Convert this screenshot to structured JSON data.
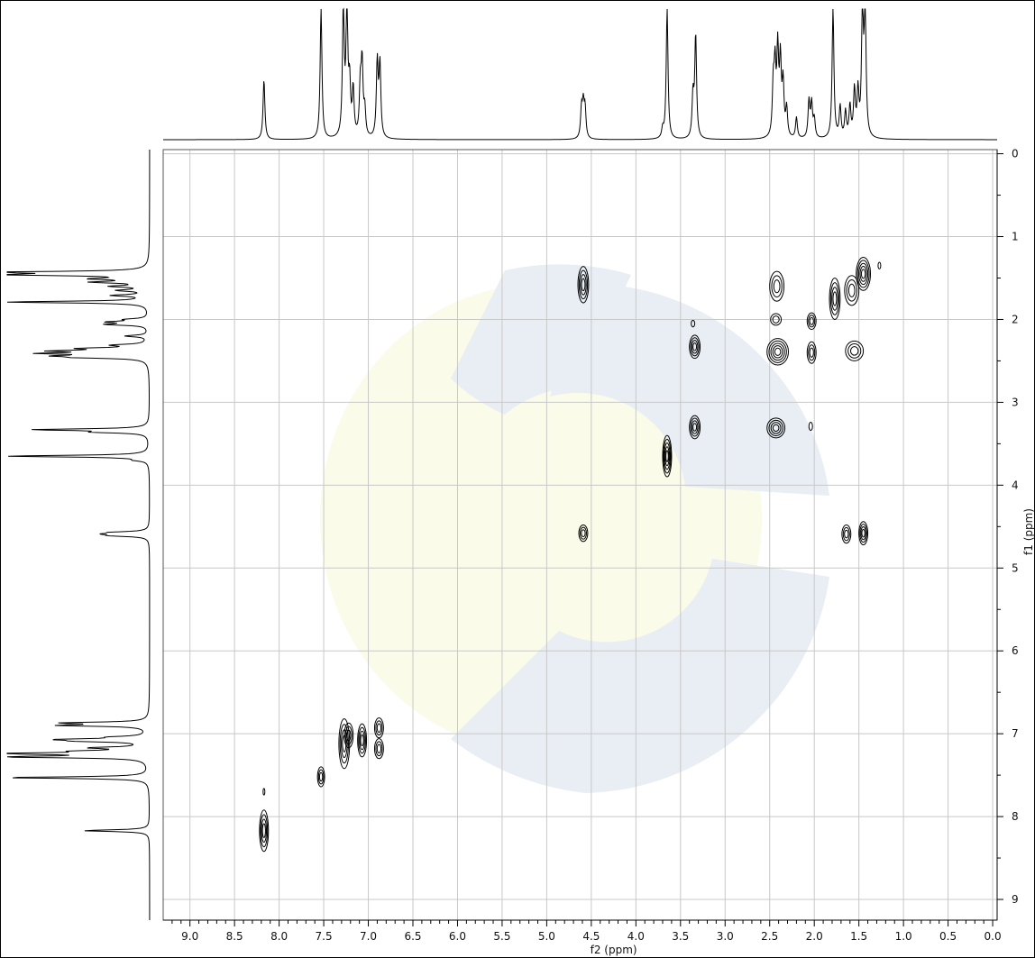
{
  "chart_data": {
    "type": "contour",
    "x_axis": {
      "label": "f2 (ppm)",
      "range": [
        9.3,
        -0.05
      ],
      "ticks": [
        "9.0",
        "8.5",
        "8.0",
        "7.5",
        "7.0",
        "6.5",
        "6.0",
        "5.5",
        "5.0",
        "4.5",
        "4.0",
        "3.5",
        "3.0",
        "2.5",
        "2.0",
        "1.5",
        "1.0",
        "0.5",
        "0.0"
      ]
    },
    "y_axis": {
      "label": "f1 (ppm)",
      "range": [
        -0.05,
        9.25
      ],
      "ticks": [
        "0",
        "1",
        "2",
        "3",
        "4",
        "5",
        "6",
        "7",
        "8",
        "9"
      ]
    },
    "grid": true,
    "projection_peaks": [
      {
        "shift": 8.17,
        "height": 0.46
      },
      {
        "shift": 7.53,
        "height": 1.0
      },
      {
        "shift": 7.28,
        "height": 1.0
      },
      {
        "shift": 7.24,
        "height": 1.0
      },
      {
        "shift": 7.21,
        "height": 0.38
      },
      {
        "shift": 7.17,
        "height": 0.36
      },
      {
        "shift": 7.09,
        "height": 0.38
      },
      {
        "shift": 7.07,
        "height": 0.55
      },
      {
        "shift": 7.04,
        "height": 0.2
      },
      {
        "shift": 6.9,
        "height": 0.58
      },
      {
        "shift": 6.87,
        "height": 0.56
      },
      {
        "shift": 4.61,
        "height": 0.22
      },
      {
        "shift": 4.59,
        "height": 0.24
      },
      {
        "shift": 4.57,
        "height": 0.22
      },
      {
        "shift": 3.7,
        "height": 0.07
      },
      {
        "shift": 3.65,
        "height": 1.0
      },
      {
        "shift": 3.36,
        "height": 0.32
      },
      {
        "shift": 3.33,
        "height": 0.79
      },
      {
        "shift": 2.46,
        "height": 0.38
      },
      {
        "shift": 2.44,
        "height": 0.5
      },
      {
        "shift": 2.41,
        "height": 0.64
      },
      {
        "shift": 2.38,
        "height": 0.56
      },
      {
        "shift": 2.35,
        "height": 0.4
      },
      {
        "shift": 2.31,
        "height": 0.22
      },
      {
        "shift": 2.2,
        "height": 0.16
      },
      {
        "shift": 2.06,
        "height": 0.28
      },
      {
        "shift": 2.03,
        "height": 0.26
      },
      {
        "shift": 2.0,
        "height": 0.14
      },
      {
        "shift": 1.79,
        "height": 1.0
      },
      {
        "shift": 1.71,
        "height": 0.24
      },
      {
        "shift": 1.65,
        "height": 0.2
      },
      {
        "shift": 1.6,
        "height": 0.24
      },
      {
        "shift": 1.55,
        "height": 0.36
      },
      {
        "shift": 1.51,
        "height": 0.34
      },
      {
        "shift": 1.46,
        "height": 1.0
      },
      {
        "shift": 1.43,
        "height": 1.0
      }
    ],
    "cross_peaks": [
      {
        "f2": 8.17,
        "f1": 8.17,
        "w": 0.05,
        "h": 0.25,
        "levels": 4
      },
      {
        "f2": 7.53,
        "f1": 7.52,
        "w": 0.04,
        "h": 0.12,
        "levels": 3
      },
      {
        "f2": 7.27,
        "f1": 7.12,
        "w": 0.06,
        "h": 0.3,
        "levels": 4
      },
      {
        "f2": 7.22,
        "f1": 7.02,
        "w": 0.05,
        "h": 0.15,
        "levels": 3
      },
      {
        "f2": 7.07,
        "f1": 7.08,
        "w": 0.05,
        "h": 0.2,
        "levels": 4
      },
      {
        "f2": 6.88,
        "f1": 6.93,
        "w": 0.05,
        "h": 0.12,
        "levels": 3
      },
      {
        "f2": 6.88,
        "f1": 7.18,
        "w": 0.05,
        "h": 0.12,
        "levels": 3
      },
      {
        "f2": 4.59,
        "f1": 1.58,
        "w": 0.06,
        "h": 0.22,
        "levels": 4
      },
      {
        "f2": 4.59,
        "f1": 4.58,
        "w": 0.05,
        "h": 0.1,
        "levels": 3
      },
      {
        "f2": 3.65,
        "f1": 3.65,
        "w": 0.05,
        "h": 0.25,
        "levels": 5
      },
      {
        "f2": 3.34,
        "f1": 2.33,
        "w": 0.06,
        "h": 0.14,
        "levels": 4
      },
      {
        "f2": 3.34,
        "f1": 3.3,
        "w": 0.06,
        "h": 0.14,
        "levels": 4
      },
      {
        "f2": 2.42,
        "f1": 1.6,
        "w": 0.08,
        "h": 0.18,
        "levels": 3
      },
      {
        "f2": 2.43,
        "f1": 2.0,
        "w": 0.06,
        "h": 0.07,
        "levels": 2
      },
      {
        "f2": 2.41,
        "f1": 2.39,
        "w": 0.12,
        "h": 0.16,
        "levels": 5
      },
      {
        "f2": 2.43,
        "f1": 3.31,
        "w": 0.1,
        "h": 0.12,
        "levels": 4
      },
      {
        "f2": 2.03,
        "f1": 2.02,
        "w": 0.05,
        "h": 0.1,
        "levels": 3
      },
      {
        "f2": 2.03,
        "f1": 2.4,
        "w": 0.05,
        "h": 0.13,
        "levels": 3
      },
      {
        "f2": 2.04,
        "f1": 3.29,
        "w": 0.02,
        "h": 0.05,
        "levels": 1
      },
      {
        "f2": 1.77,
        "f1": 1.75,
        "w": 0.06,
        "h": 0.25,
        "levels": 4
      },
      {
        "f2": 1.58,
        "f1": 1.65,
        "w": 0.08,
        "h": 0.18,
        "levels": 3
      },
      {
        "f2": 1.55,
        "f1": 2.38,
        "w": 0.1,
        "h": 0.12,
        "levels": 3
      },
      {
        "f2": 1.45,
        "f1": 1.45,
        "w": 0.08,
        "h": 0.2,
        "levels": 5
      },
      {
        "f2": 1.64,
        "f1": 4.59,
        "w": 0.05,
        "h": 0.11,
        "levels": 3
      },
      {
        "f2": 1.45,
        "f1": 4.58,
        "w": 0.05,
        "h": 0.14,
        "levels": 4
      },
      {
        "f2": 3.36,
        "f1": 2.05,
        "w": 0.02,
        "h": 0.04,
        "levels": 1
      },
      {
        "f2": 8.17,
        "f1": 7.7,
        "w": 0.01,
        "h": 0.04,
        "levels": 1
      },
      {
        "f2": 1.27,
        "f1": 1.35,
        "w": 0.015,
        "h": 0.04,
        "levels": 1
      }
    ],
    "colors": {
      "line": "#000000",
      "grid": "#c8c8c8",
      "watermark_blue": "#e8eef3",
      "watermark_yellow": "#fbfbea"
    }
  }
}
